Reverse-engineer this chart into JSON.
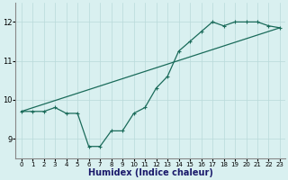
{
  "line1_x": [
    0,
    1,
    2,
    3,
    4,
    5,
    6,
    7,
    8,
    9,
    10,
    11,
    12,
    13,
    14,
    15,
    16,
    17,
    18,
    19,
    20,
    21,
    22,
    23
  ],
  "line1_y": [
    9.7,
    9.7,
    9.7,
    9.8,
    9.65,
    9.65,
    8.8,
    8.8,
    9.2,
    9.2,
    9.65,
    9.8,
    10.3,
    10.6,
    11.25,
    11.5,
    11.75,
    12.0,
    11.9,
    12.0,
    12.0,
    12.0,
    11.9,
    11.85
  ],
  "line2_x": [
    0,
    23
  ],
  "line2_y": [
    9.7,
    11.85
  ],
  "color": "#1a6b5a",
  "bg_color": "#d9f0f0",
  "grid_color": "#b8dada",
  "xlabel": "Humidex (Indice chaleur)",
  "xlabel_fontsize": 7,
  "yticks": [
    9,
    10,
    11,
    12
  ],
  "xticks": [
    0,
    1,
    2,
    3,
    4,
    5,
    6,
    7,
    8,
    9,
    10,
    11,
    12,
    13,
    14,
    15,
    16,
    17,
    18,
    19,
    20,
    21,
    22,
    23
  ],
  "ylim": [
    8.5,
    12.5
  ],
  "xlim": [
    -0.5,
    23.5
  ]
}
